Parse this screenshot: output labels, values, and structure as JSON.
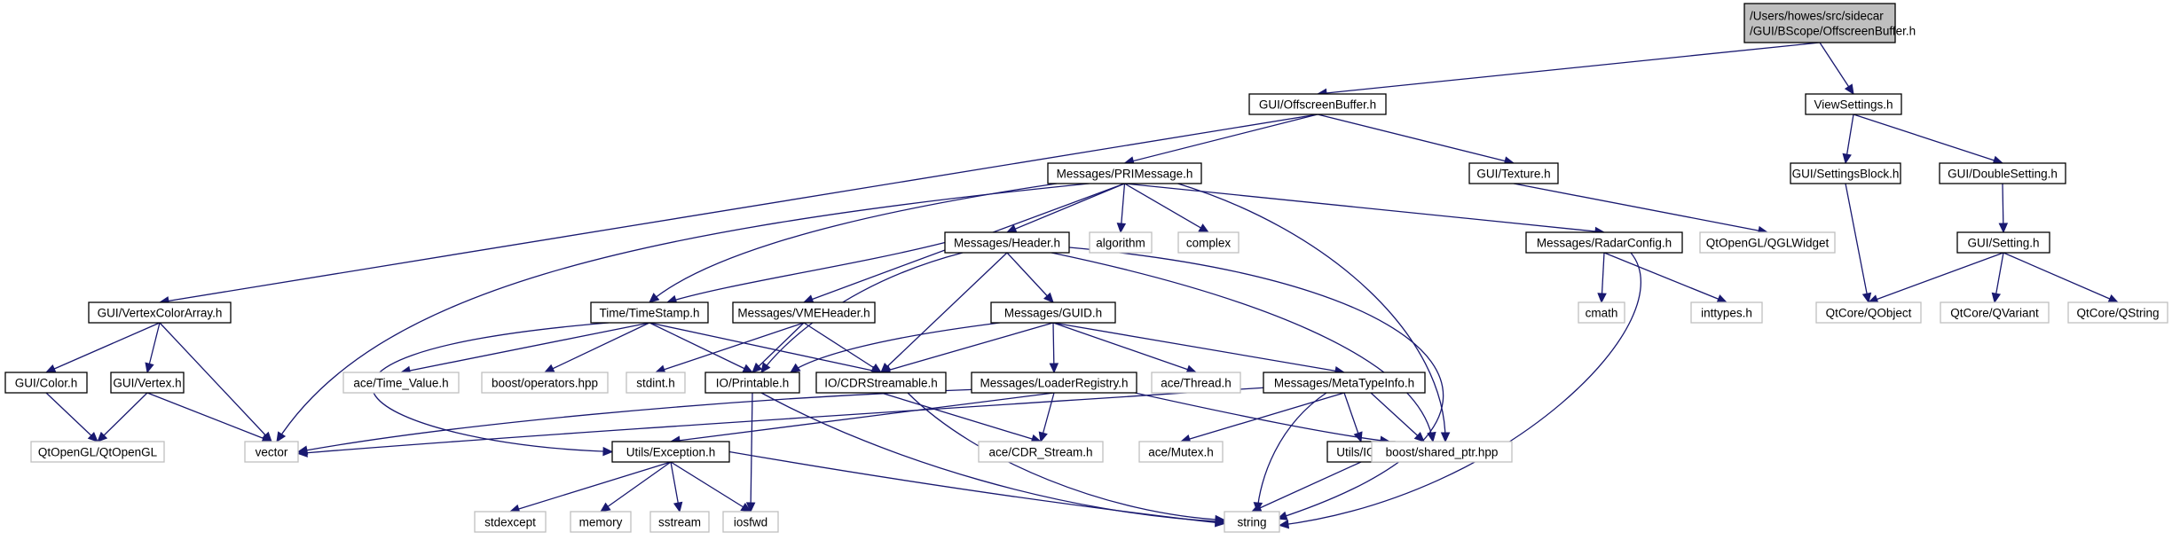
{
  "diagram": {
    "nodes": [
      {
        "id": "root",
        "lines": [
          "/Users/howes/src/sidecar",
          "/GUI/BScope/OffscreenBuffer.h"
        ],
        "kind": "root"
      },
      {
        "id": "gui_offscreenbuffer",
        "lines": [
          "GUI/OffscreenBuffer.h"
        ],
        "kind": "doc"
      },
      {
        "id": "viewsettings",
        "lines": [
          "ViewSettings.h"
        ],
        "kind": "doc"
      },
      {
        "id": "pri",
        "lines": [
          "Messages/PRIMessage.h"
        ],
        "kind": "doc"
      },
      {
        "id": "texture",
        "lines": [
          "GUI/Texture.h"
        ],
        "kind": "doc"
      },
      {
        "id": "settingsblock",
        "lines": [
          "GUI/SettingsBlock.h"
        ],
        "kind": "doc"
      },
      {
        "id": "doublesetting",
        "lines": [
          "GUI/DoubleSetting.h"
        ],
        "kind": "doc"
      },
      {
        "id": "header",
        "lines": [
          "Messages/Header.h"
        ],
        "kind": "doc"
      },
      {
        "id": "algorithm",
        "lines": [
          "algorithm"
        ],
        "kind": "ext"
      },
      {
        "id": "complex",
        "lines": [
          "complex"
        ],
        "kind": "ext"
      },
      {
        "id": "radarconfig",
        "lines": [
          "Messages/RadarConfig.h"
        ],
        "kind": "doc"
      },
      {
        "id": "qglwidget",
        "lines": [
          "QtOpenGL/QGLWidget"
        ],
        "kind": "ext"
      },
      {
        "id": "setting",
        "lines": [
          "GUI/Setting.h"
        ],
        "kind": "doc"
      },
      {
        "id": "vertexcolorarray",
        "lines": [
          "GUI/VertexColorArray.h"
        ],
        "kind": "doc"
      },
      {
        "id": "timestamp",
        "lines": [
          "Time/TimeStamp.h"
        ],
        "kind": "doc"
      },
      {
        "id": "vmeheader",
        "lines": [
          "Messages/VMEHeader.h"
        ],
        "kind": "doc"
      },
      {
        "id": "guid",
        "lines": [
          "Messages/GUID.h"
        ],
        "kind": "doc"
      },
      {
        "id": "cmath",
        "lines": [
          "cmath"
        ],
        "kind": "ext"
      },
      {
        "id": "inttypes",
        "lines": [
          "inttypes.h"
        ],
        "kind": "ext"
      },
      {
        "id": "qobject",
        "lines": [
          "QtCore/QObject"
        ],
        "kind": "ext"
      },
      {
        "id": "qvariant",
        "lines": [
          "QtCore/QVariant"
        ],
        "kind": "ext"
      },
      {
        "id": "qstring",
        "lines": [
          "QtCore/QString"
        ],
        "kind": "ext"
      },
      {
        "id": "color",
        "lines": [
          "GUI/Color.h"
        ],
        "kind": "doc"
      },
      {
        "id": "vertex",
        "lines": [
          "GUI/Vertex.h"
        ],
        "kind": "doc"
      },
      {
        "id": "acetimevalue",
        "lines": [
          "ace/Time_Value.h"
        ],
        "kind": "ext"
      },
      {
        "id": "boostoperators",
        "lines": [
          "boost/operators.hpp"
        ],
        "kind": "ext"
      },
      {
        "id": "stdint",
        "lines": [
          "stdint.h"
        ],
        "kind": "ext"
      },
      {
        "id": "printable",
        "lines": [
          "IO/Printable.h"
        ],
        "kind": "doc"
      },
      {
        "id": "cdrstreamable",
        "lines": [
          "IO/CDRStreamable.h"
        ],
        "kind": "doc"
      },
      {
        "id": "loaderregistry",
        "lines": [
          "Messages/LoaderRegistry.h"
        ],
        "kind": "doc"
      },
      {
        "id": "acethread",
        "lines": [
          "ace/Thread.h"
        ],
        "kind": "ext"
      },
      {
        "id": "metatypeinfo",
        "lines": [
          "Messages/MetaTypeInfo.h"
        ],
        "kind": "doc"
      },
      {
        "id": "qtopengl",
        "lines": [
          "QtOpenGL/QtOpenGL"
        ],
        "kind": "ext"
      },
      {
        "id": "vector",
        "lines": [
          "vector"
        ],
        "kind": "ext"
      },
      {
        "id": "exception",
        "lines": [
          "Utils/Exception.h"
        ],
        "kind": "doc"
      },
      {
        "id": "cdrstream",
        "lines": [
          "ace/CDR_Stream.h"
        ],
        "kind": "ext"
      },
      {
        "id": "acemutex",
        "lines": [
          "ace/Mutex.h"
        ],
        "kind": "ext"
      },
      {
        "id": "utilsio",
        "lines": [
          "Utils/IO.h"
        ],
        "kind": "doc"
      },
      {
        "id": "sharedptr",
        "lines": [
          "boost/shared_ptr.hpp"
        ],
        "kind": "ext"
      },
      {
        "id": "stdexcept",
        "lines": [
          "stdexcept"
        ],
        "kind": "ext"
      },
      {
        "id": "memory",
        "lines": [
          "memory"
        ],
        "kind": "ext"
      },
      {
        "id": "sstream",
        "lines": [
          "sstream"
        ],
        "kind": "ext"
      },
      {
        "id": "iosfwd",
        "lines": [
          "iosfwd"
        ],
        "kind": "ext"
      },
      {
        "id": "string",
        "lines": [
          "string"
        ],
        "kind": "ext"
      }
    ],
    "edges": [
      [
        "root",
        "gui_offscreenbuffer"
      ],
      [
        "root",
        "viewsettings"
      ],
      [
        "gui_offscreenbuffer",
        "pri"
      ],
      [
        "gui_offscreenbuffer",
        "texture"
      ],
      [
        "gui_offscreenbuffer",
        "vertexcolorarray"
      ],
      [
        "viewsettings",
        "settingsblock"
      ],
      [
        "viewsettings",
        "doublesetting"
      ],
      [
        "pri",
        "header"
      ],
      [
        "pri",
        "algorithm"
      ],
      [
        "pri",
        "complex"
      ],
      [
        "pri",
        "radarconfig"
      ],
      [
        "pri",
        "timestamp"
      ],
      [
        "pri",
        "vmeheader"
      ],
      [
        "pri",
        "vector"
      ],
      [
        "pri",
        "sharedptr"
      ],
      [
        "texture",
        "qglwidget"
      ],
      [
        "settingsblock",
        "qobject"
      ],
      [
        "doublesetting",
        "setting"
      ],
      [
        "setting",
        "qobject"
      ],
      [
        "setting",
        "qvariant"
      ],
      [
        "setting",
        "qstring"
      ],
      [
        "header",
        "timestamp"
      ],
      [
        "header",
        "guid"
      ],
      [
        "header",
        "printable"
      ],
      [
        "header",
        "cdrstreamable"
      ],
      [
        "header",
        "sharedptr"
      ],
      [
        "header",
        "string"
      ],
      [
        "radarconfig",
        "cmath"
      ],
      [
        "radarconfig",
        "inttypes"
      ],
      [
        "radarconfig",
        "string"
      ],
      [
        "vertexcolorarray",
        "color"
      ],
      [
        "vertexcolorarray",
        "vertex"
      ],
      [
        "vertexcolorarray",
        "vector"
      ],
      [
        "color",
        "qtopengl"
      ],
      [
        "vertex",
        "qtopengl"
      ],
      [
        "vertex",
        "vector"
      ],
      [
        "timestamp",
        "acetimevalue"
      ],
      [
        "timestamp",
        "boostoperators"
      ],
      [
        "timestamp",
        "printable"
      ],
      [
        "timestamp",
        "cdrstreamable"
      ],
      [
        "timestamp",
        "exception"
      ],
      [
        "vmeheader",
        "stdint"
      ],
      [
        "vmeheader",
        "printable"
      ],
      [
        "vmeheader",
        "cdrstreamable"
      ],
      [
        "guid",
        "printable"
      ],
      [
        "guid",
        "cdrstreamable"
      ],
      [
        "guid",
        "loaderregistry"
      ],
      [
        "guid",
        "acethread"
      ],
      [
        "guid",
        "metatypeinfo"
      ],
      [
        "printable",
        "iosfwd"
      ],
      [
        "printable",
        "string"
      ],
      [
        "cdrstreamable",
        "cdrstream"
      ],
      [
        "cdrstreamable",
        "string"
      ],
      [
        "loaderregistry",
        "vector"
      ],
      [
        "loaderregistry",
        "exception"
      ],
      [
        "loaderregistry",
        "cdrstream"
      ],
      [
        "loaderregistry",
        "sharedptr"
      ],
      [
        "metatypeinfo",
        "vector"
      ],
      [
        "metatypeinfo",
        "acemutex"
      ],
      [
        "metatypeinfo",
        "utilsio"
      ],
      [
        "metatypeinfo",
        "sharedptr"
      ],
      [
        "metatypeinfo",
        "string"
      ],
      [
        "exception",
        "stdexcept"
      ],
      [
        "exception",
        "memory"
      ],
      [
        "exception",
        "sstream"
      ],
      [
        "exception",
        "iosfwd"
      ],
      [
        "exception",
        "string"
      ],
      [
        "utilsio",
        "string"
      ]
    ]
  },
  "colors": {
    "edge": "#191970",
    "node_border": "#000000",
    "external_border": "#bfbfbf",
    "root_fill": "#bfbfbf",
    "background": "#ffffff"
  }
}
